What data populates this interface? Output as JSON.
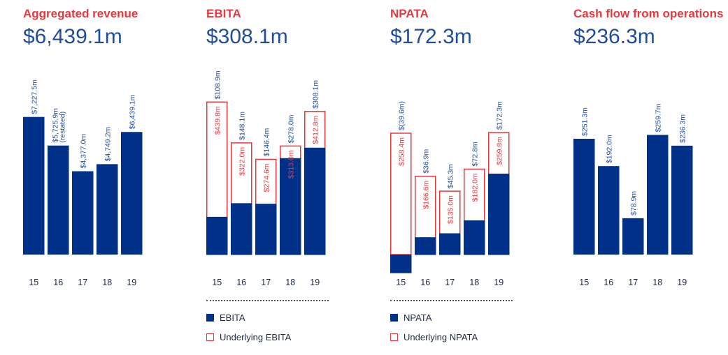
{
  "colors": {
    "bar": "#003087",
    "outline": "#e8383d",
    "title": "#e8383d",
    "value": "#1f4e9c",
    "label": "#1f4e9c",
    "tick": "#1f2a44"
  },
  "panels": [
    {
      "title": "Aggregated revenue",
      "value": "$6,439.1m"
    },
    {
      "title": "EBITA",
      "value": "$308.1m"
    },
    {
      "title": "NPATA",
      "value": "$172.3m"
    },
    {
      "title": "Cash flow from operations",
      "value": "$236.3m"
    }
  ],
  "legends": {
    "ebita": {
      "fill": "EBITA",
      "outline": "Underlying EBITA"
    },
    "npata": {
      "fill": "NPATA",
      "outline": "Underlying NPATA"
    }
  },
  "chart_data": [
    {
      "type": "bar",
      "title": "Aggregated revenue",
      "categories": [
        "15",
        "16",
        "17",
        "18",
        "19"
      ],
      "values": [
        7227.5,
        5725.9,
        4377.0,
        4749.2,
        6439.1
      ],
      "labels": [
        "$7,227.5m",
        "$5,725.9m (restated)",
        "$4,377.0m",
        "$4,749.2m",
        "$6,439.1m"
      ],
      "ylim": [
        0,
        7500
      ]
    },
    {
      "type": "bar",
      "title": "EBITA",
      "categories": [
        "15",
        "16",
        "17",
        "18",
        "19"
      ],
      "series": [
        {
          "name": "EBITA",
          "values": [
            108.9,
            148.1,
            146.4,
            278.0,
            308.1
          ],
          "labels": [
            "$108.9m",
            "$148.1m",
            "$146.4m",
            "$278.0m",
            "$308.1m"
          ]
        },
        {
          "name": "Underlying EBITA",
          "values": [
            439.8,
            322.0,
            274.6,
            313.0,
            412.8
          ],
          "labels": [
            "$439.8m",
            "$322.0m",
            "$274.6m",
            "$313.0m",
            "$412.8m"
          ]
        }
      ],
      "ylim": [
        0,
        450
      ]
    },
    {
      "type": "bar",
      "title": "NPATA",
      "categories": [
        "15",
        "16",
        "17",
        "18",
        "19"
      ],
      "series": [
        {
          "name": "NPATA",
          "values": [
            -39.6,
            36.9,
            45.3,
            72.8,
            172.3
          ],
          "labels": [
            "$(39.6m)",
            "$36.9m",
            "$45.3m",
            "$72.8m",
            "$172.3m"
          ]
        },
        {
          "name": "Underlying NPATA",
          "values": [
            258.4,
            166.6,
            135.0,
            182.0,
            259.8
          ],
          "labels": [
            "$258.4m",
            "$166.6m",
            "$135.0m",
            "$182.0m",
            "$259.8m"
          ]
        }
      ],
      "ylim": [
        -40,
        270
      ]
    },
    {
      "type": "bar",
      "title": "Cash flow from operations",
      "categories": [
        "15",
        "16",
        "17",
        "18",
        "19"
      ],
      "values": [
        251.3,
        192.0,
        78.9,
        259.7,
        236.3
      ],
      "labels": [
        "$251.3m",
        "$192.0m",
        "$78.9m",
        "$259.7m",
        "$236.3m"
      ],
      "ylim": [
        0,
        270
      ]
    }
  ]
}
